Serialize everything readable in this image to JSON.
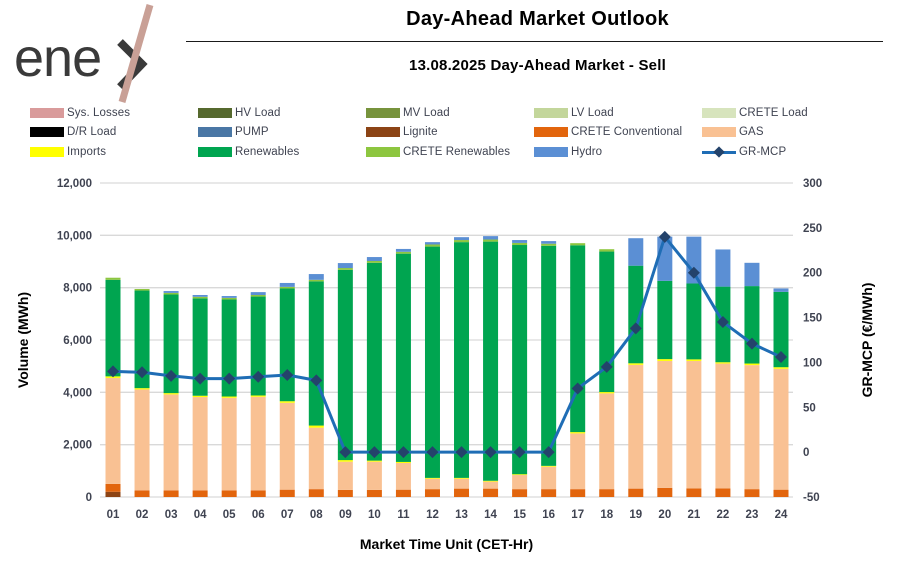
{
  "header": {
    "logo_text": "ene",
    "title": "Day-Ahead Market Outlook",
    "subtitle": "13.08.2025  Day-Ahead Market - Sell"
  },
  "colors": {
    "sys_losses": "#d99b9b",
    "hv_load": "#56692e",
    "mv_load": "#77933c",
    "lv_load": "#c3d69b",
    "crete_load": "#d7e4bd",
    "dr_load": "#000000",
    "pump": "#4a77a5",
    "lignite": "#8c4415",
    "crete_conventional": "#e2650d",
    "gas": "#f9c193",
    "imports": "#ffff00",
    "renewables": "#00a550",
    "crete_renewables": "#8dc63f",
    "hydro": "#5b8fd4",
    "mcp_line": "#1f6db5",
    "mcp_marker": "#24436b",
    "gridline": "#d9d9d9"
  },
  "legend": {
    "items": [
      {
        "label": "Sys. Losses",
        "color": "#d99b9b",
        "type": "swatch"
      },
      {
        "label": "HV Load",
        "color": "#56692e",
        "type": "swatch"
      },
      {
        "label": "MV Load",
        "color": "#77933c",
        "type": "swatch"
      },
      {
        "label": "LV Load",
        "color": "#c3d69b",
        "type": "swatch"
      },
      {
        "label": "CRETE Load",
        "color": "#d7e4bd",
        "type": "swatch"
      },
      {
        "label": "D/R Load",
        "color": "#000000",
        "type": "swatch"
      },
      {
        "label": "PUMP",
        "color": "#4a77a5",
        "type": "swatch"
      },
      {
        "label": "Lignite",
        "color": "#8c4415",
        "type": "swatch"
      },
      {
        "label": "CRETE Conventional",
        "color": "#e2650d",
        "type": "swatch"
      },
      {
        "label": "GAS",
        "color": "#f9c193",
        "type": "swatch"
      },
      {
        "label": "Imports",
        "color": "#ffff00",
        "type": "swatch"
      },
      {
        "label": "Renewables",
        "color": "#00a550",
        "type": "swatch"
      },
      {
        "label": "CRETE Renewables",
        "color": "#8dc63f",
        "type": "swatch"
      },
      {
        "label": "Hydro",
        "color": "#5b8fd4",
        "type": "swatch"
      },
      {
        "label": "GR-MCP",
        "color": "#1f6db5",
        "marker_color": "#24436b",
        "type": "line"
      }
    ]
  },
  "chart_data": {
    "type": "bar",
    "subtype": "stacked-bars-with-line",
    "title": "Day-Ahead Market Outlook",
    "subtitle": "13.08.2025  Day-Ahead Market - Sell",
    "xlabel": "Market Time Unit (CET-Hr)",
    "categories": [
      "01",
      "02",
      "03",
      "04",
      "05",
      "06",
      "07",
      "08",
      "09",
      "10",
      "11",
      "12",
      "13",
      "14",
      "15",
      "16",
      "17",
      "18",
      "19",
      "20",
      "21",
      "22",
      "23",
      "24"
    ],
    "left_axis": {
      "label": "Volume (MWh)",
      "range": [
        0,
        12000
      ],
      "tick_step": 2000,
      "tick_labels": [
        "0",
        "2,000",
        "4,000",
        "6,000",
        "8,000",
        "10,000",
        "12,000"
      ],
      "grid": true
    },
    "right_axis": {
      "label": "GR-MCP (€/MWh)",
      "range": [
        -50,
        300
      ],
      "tick_step": 50,
      "tick_labels": [
        "-50",
        "0",
        "50",
        "100",
        "150",
        "200",
        "250",
        "300"
      ],
      "grid": false
    },
    "series": [
      {
        "name": "Lignite",
        "color": "#8c4415",
        "values": [
          200,
          0,
          0,
          0,
          0,
          0,
          0,
          0,
          0,
          0,
          0,
          0,
          0,
          0,
          0,
          0,
          0,
          0,
          0,
          0,
          0,
          0,
          0,
          0
        ]
      },
      {
        "name": "CRETE Conventional",
        "color": "#e2650d",
        "values": [
          300,
          250,
          250,
          250,
          250,
          250,
          280,
          300,
          270,
          270,
          280,
          300,
          320,
          320,
          300,
          300,
          300,
          300,
          320,
          350,
          330,
          330,
          300,
          280
        ]
      },
      {
        "name": "GAS",
        "color": "#f9c193",
        "values": [
          4050,
          3860,
          3670,
          3570,
          3540,
          3580,
          3320,
          2350,
          1080,
          1080,
          1020,
          400,
          380,
          270,
          540,
          860,
          2130,
          3660,
          4730,
          4850,
          4870,
          4770,
          4740,
          4620
        ]
      },
      {
        "name": "Imports",
        "color": "#ffff00",
        "values": [
          60,
          50,
          50,
          50,
          50,
          50,
          60,
          80,
          60,
          40,
          40,
          30,
          30,
          30,
          30,
          30,
          50,
          50,
          60,
          70,
          60,
          50,
          60,
          60
        ]
      },
      {
        "name": "Renewables",
        "color": "#00a550",
        "values": [
          3690,
          3730,
          3770,
          3720,
          3710,
          3780,
          4310,
          5510,
          7270,
          7560,
          7960,
          8840,
          9010,
          9140,
          8760,
          8410,
          7140,
          5370,
          3730,
          2990,
          2900,
          2890,
          2960,
          2880
        ]
      },
      {
        "name": "CRETE Renewables",
        "color": "#8dc63f",
        "values": [
          80,
          60,
          60,
          60,
          60,
          60,
          60,
          60,
          70,
          70,
          70,
          80,
          80,
          80,
          80,
          80,
          80,
          90,
          0,
          0,
          0,
          0,
          0,
          0
        ]
      },
      {
        "name": "Hydro",
        "color": "#5b8fd4",
        "values": [
          0,
          0,
          70,
          70,
          70,
          110,
          150,
          220,
          190,
          150,
          110,
          90,
          110,
          130,
          110,
          100,
          0,
          0,
          1050,
          1690,
          1790,
          1420,
          890,
          130
        ]
      }
    ],
    "line_series": {
      "name": "GR-MCP",
      "color": "#1f6db5",
      "marker": "diamond",
      "marker_color": "#24436b",
      "values": [
        90,
        89,
        85,
        82,
        82,
        84,
        86,
        80,
        0,
        0,
        0,
        0,
        0,
        0,
        0,
        0,
        71,
        95,
        138,
        240,
        200,
        145,
        121,
        106
      ]
    },
    "legend_position": "top",
    "background": "#ffffff"
  }
}
